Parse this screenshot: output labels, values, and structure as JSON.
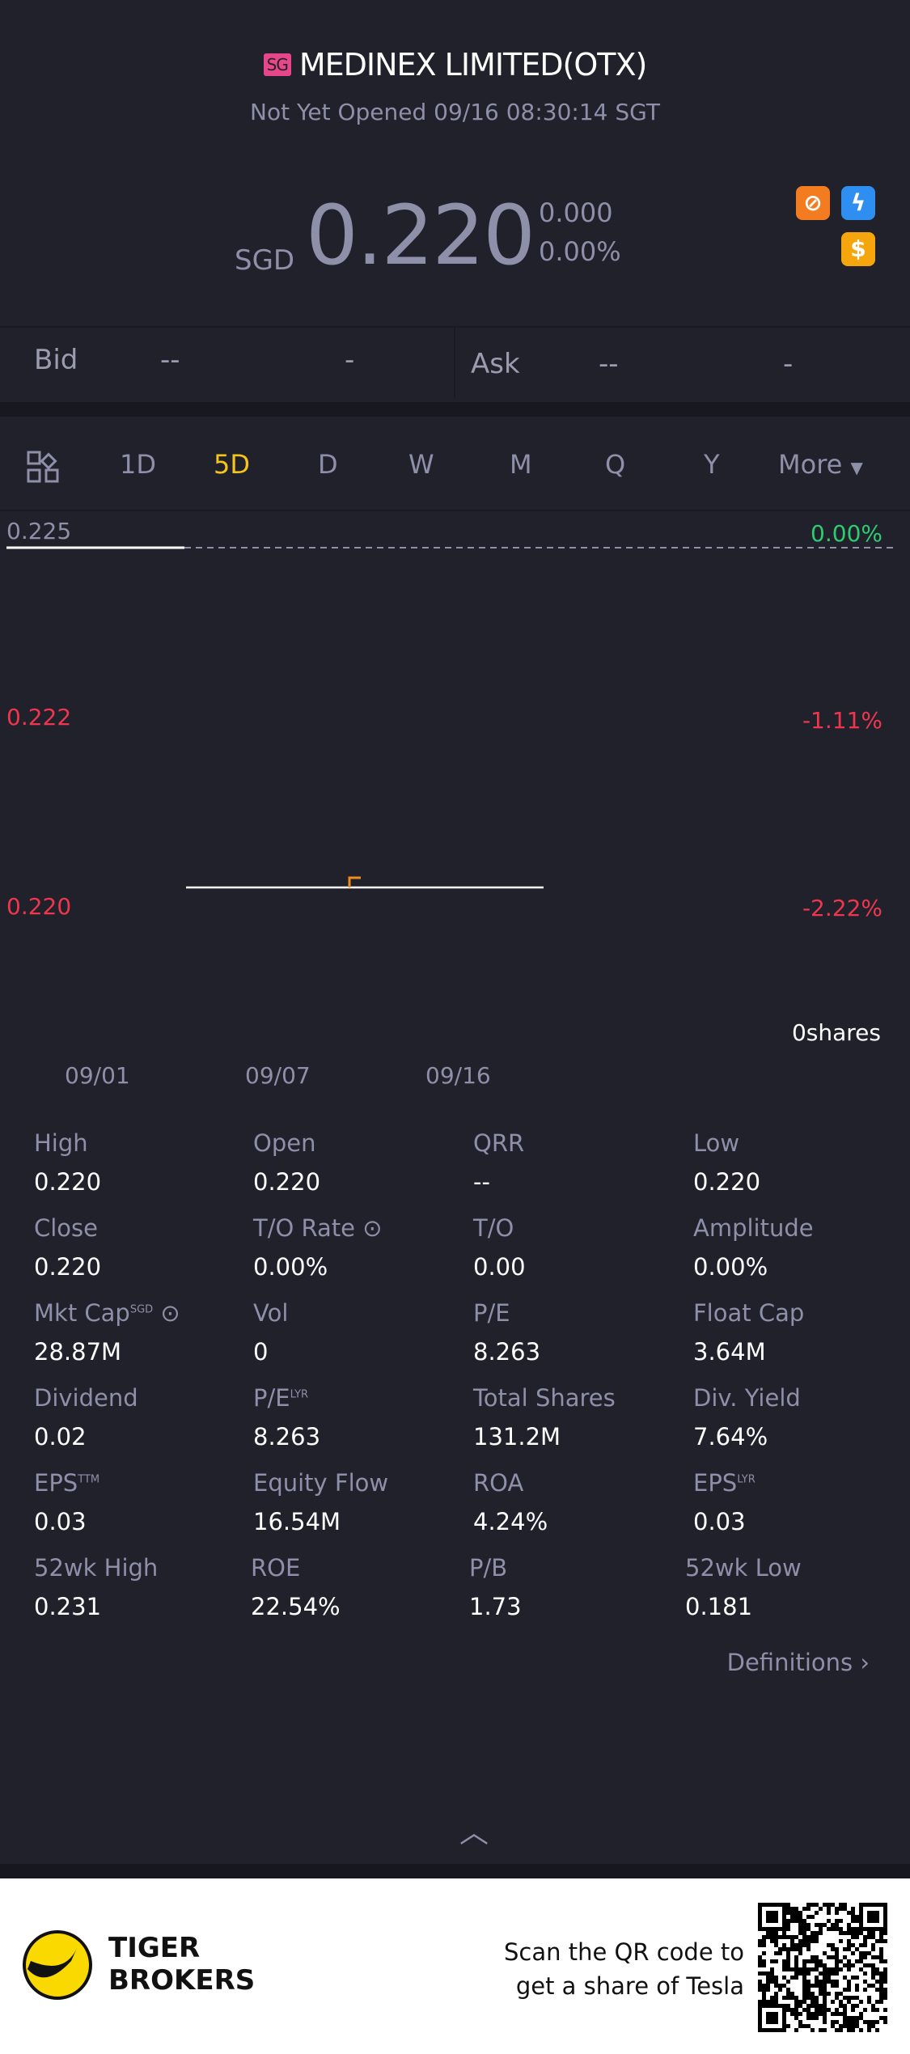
{
  "header": {
    "market_badge": "SG",
    "title": "MEDINEX LIMITED(OTX)",
    "status": "Not Yet Opened 09/16 08:30:14 SGT"
  },
  "quote": {
    "currency": "SGD",
    "price": "0.220",
    "change": "0.000",
    "change_pct": "0.00%",
    "icons": [
      "no-short-icon",
      "lightning-level1-icon",
      "dollar-icon"
    ]
  },
  "book": {
    "bid_label": "Bid",
    "bid_price": "--",
    "bid_size": "-",
    "ask_label": "Ask",
    "ask_price": "--",
    "ask_size": "-"
  },
  "tabs": {
    "items": [
      "1D",
      "5D",
      "D",
      "W",
      "M",
      "Q",
      "Y"
    ],
    "active": "5D",
    "more": "More"
  },
  "chart": {
    "y_labels": [
      "0.225",
      "0.222",
      "0.220"
    ],
    "pct_labels": [
      "0.00%",
      "-1.11%",
      "-2.22%"
    ],
    "volume": "0shares",
    "dates": [
      "09/01",
      "09/07",
      "09/16"
    ],
    "colors": {
      "up": "#2ecc71",
      "down": "#f0364f",
      "line": "#ffffff",
      "marker": "#f08c1a"
    }
  },
  "stats": [
    [
      {
        "l": "High",
        "v": "0.220"
      },
      {
        "l": "Open",
        "v": "0.220"
      },
      {
        "l": "QRR",
        "v": "--"
      },
      {
        "l": "Low",
        "v": "0.220"
      }
    ],
    [
      {
        "l": "Close",
        "v": "0.220"
      },
      {
        "l": "T/O Rate",
        "v": "0.00%"
      },
      {
        "l": "T/O",
        "v": "0.00"
      },
      {
        "l": "Amplitude",
        "v": "0.00%"
      }
    ],
    [
      {
        "l": "Mkt Cap",
        "sup": "SGD",
        "v": "28.87M"
      },
      {
        "l": "Vol",
        "v": "0"
      },
      {
        "l": "P/E",
        "v": "8.263"
      },
      {
        "l": "Float Cap",
        "v": "3.64M"
      }
    ],
    [
      {
        "l": "Dividend",
        "v": "0.02"
      },
      {
        "l": "P/E",
        "sup": "LYR",
        "v": "8.263"
      },
      {
        "l": "Total Shares",
        "v": "131.2M"
      },
      {
        "l": "Div. Yield",
        "v": "7.64%"
      }
    ],
    [
      {
        "l": "EPS",
        "sup": "TTM",
        "v": "0.03"
      },
      {
        "l": "Equity Flow",
        "v": "16.54M"
      },
      {
        "l": "ROA",
        "v": "4.24%"
      },
      {
        "l": "EPS",
        "sup": "LYR",
        "v": "0.03"
      }
    ],
    [
      {
        "l": "52wk High",
        "v": "0.231"
      },
      {
        "l": "ROE",
        "v": "22.54%"
      },
      {
        "l": "P/B",
        "v": "1.73"
      },
      {
        "l": "52wk Low",
        "v": "0.181"
      }
    ]
  ],
  "definitions": "Definitions",
  "footer": {
    "brand_line1": "TIGER",
    "brand_line2": "BROKERS",
    "promo_line1": "Scan the QR code to",
    "promo_line2": "get a share of Tesla"
  }
}
